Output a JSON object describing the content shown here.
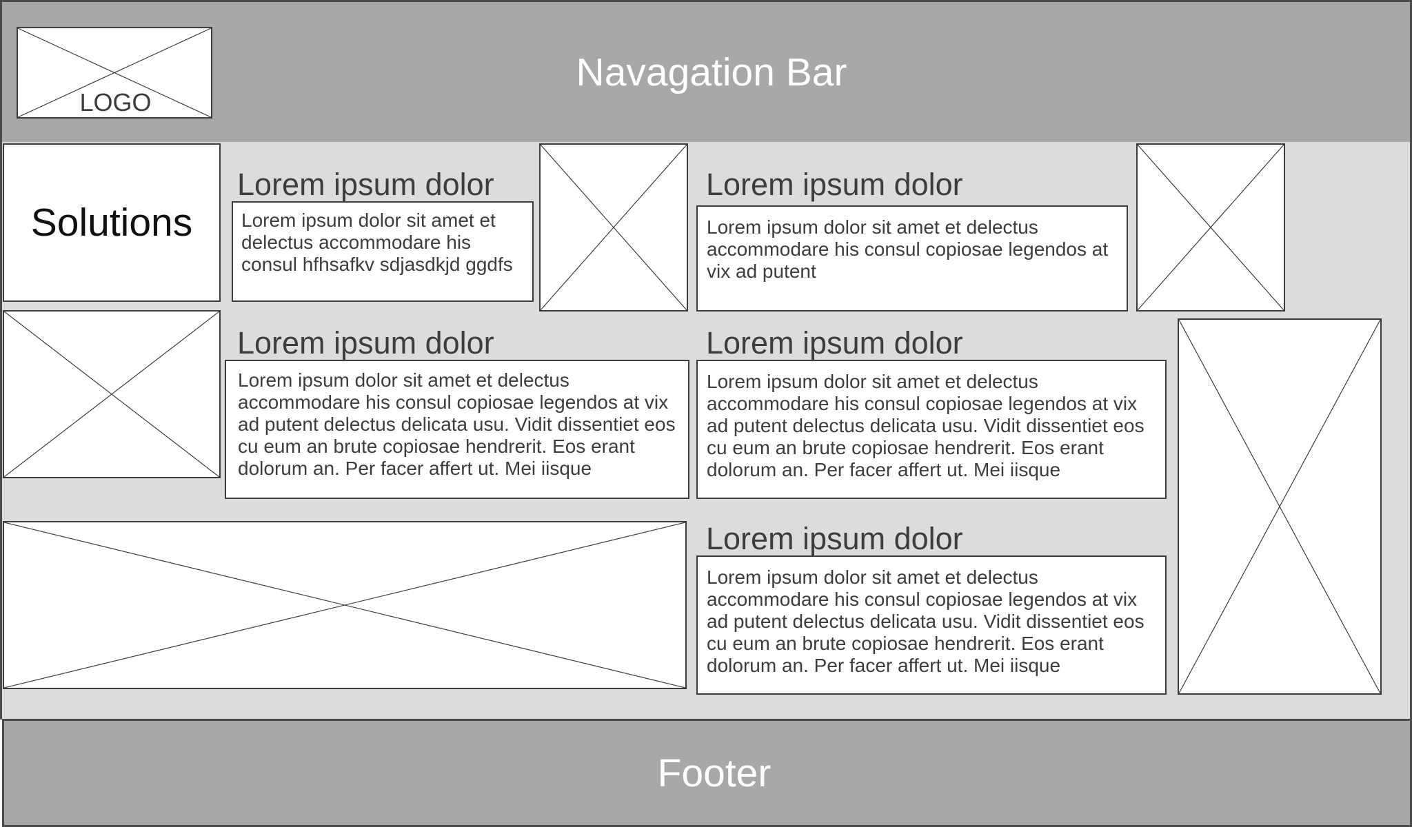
{
  "navbar": {
    "title": "Navagation Bar"
  },
  "logo": {
    "label": "LOGO"
  },
  "sidebar": {
    "label": "Solutions"
  },
  "sections": [
    {
      "heading": "Lorem ipsum dolor",
      "body": "Lorem ipsum dolor sit amet et delectus accommodare his consul hfhsafkv sdjasdkjd ggdfs"
    },
    {
      "heading": "Lorem ipsum dolor",
      "body": "Lorem ipsum dolor sit amet et delectus accommodare his consul copiosae legendos at vix ad putent"
    },
    {
      "heading": "Lorem ipsum dolor",
      "body": "Lorem ipsum dolor sit amet et delectus accommodare his consul copiosae legendos at vix ad putent delectus delicata usu. Vidit dissentiet eos cu eum an brute copiosae hendrerit. Eos erant dolorum an. Per facer affert ut. Mei iisque"
    },
    {
      "heading": "Lorem ipsum dolor",
      "body": "Lorem ipsum dolor sit amet et delectus accommodare his consul copiosae legendos at vix ad putent delectus delicata usu. Vidit dissentiet eos cu eum an brute copiosae hendrerit. Eos erant dolorum an. Per facer affert ut. Mei iisque"
    },
    {
      "heading": "Lorem ipsum dolor",
      "body": "Lorem ipsum dolor sit amet et delectus accommodare his consul copiosae legendos at vix ad putent delectus delicata usu. Vidit dissentiet eos cu eum an brute copiosae hendrerit. Eos erant dolorum an. Per facer affert ut. Mei iisque"
    }
  ],
  "footer": {
    "title": "Footer"
  }
}
